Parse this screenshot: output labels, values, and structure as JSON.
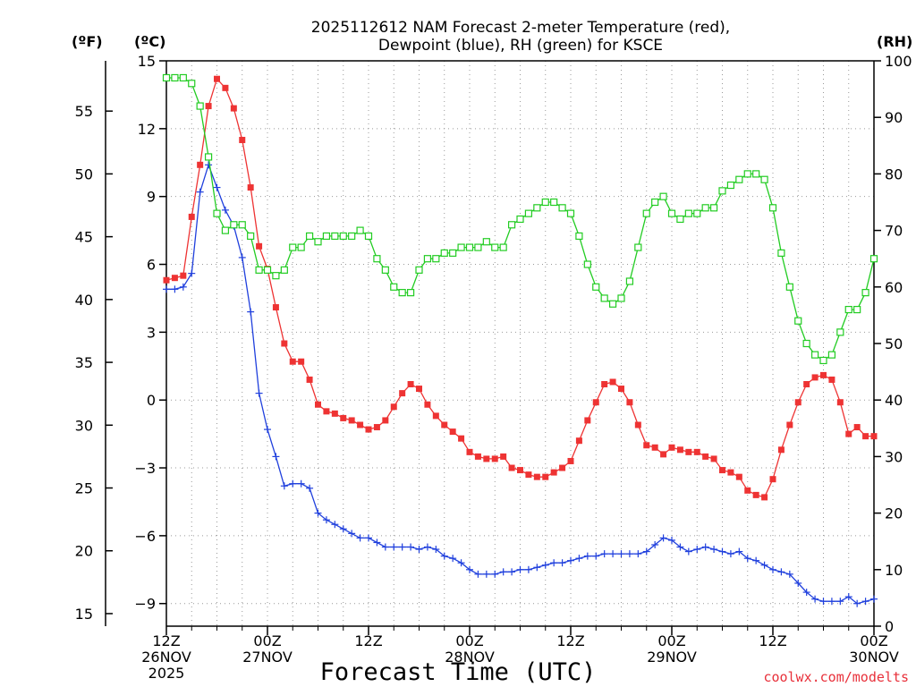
{
  "chart_data": {
    "type": "line",
    "title_line1": "2025112612 NAM Forecast 2-meter Temperature (red),",
    "title_line2": "Dewpoint (blue), RH (green) for KSCE",
    "unit_left_f": "(ºF)",
    "unit_left_c": "(ºC)",
    "unit_right": "(RH)",
    "xlabel": "Forecast Time (UTC)",
    "credit": "coolwx.com/modelts",
    "credit_color": "#e8303a",
    "x_hours_range": [
      0,
      84
    ],
    "y_celsius_range": [
      -10,
      15
    ],
    "y_rh_range": [
      0,
      100
    ],
    "celsius_ticks": [
      15,
      12,
      9,
      6,
      3,
      0,
      -3,
      -6,
      -9
    ],
    "celsius_tick_labels": [
      "15",
      "12",
      "9",
      "6",
      "3",
      "0",
      "−3",
      "−6",
      "−9"
    ],
    "fahrenheit_ticks": [
      55,
      50,
      45,
      40,
      35,
      30,
      25,
      20,
      15
    ],
    "fahrenheit_tick_labels": [
      "55",
      "50",
      "45",
      "40",
      "35",
      "30",
      "25",
      "20",
      "15"
    ],
    "rh_ticks": [
      100,
      90,
      80,
      70,
      60,
      50,
      40,
      30,
      20,
      10,
      0
    ],
    "rh_tick_labels": [
      "100",
      "90",
      "80",
      "70",
      "60",
      "50",
      "40",
      "30",
      "20",
      "10",
      "0"
    ],
    "x_ticks": [
      {
        "hour": 0,
        "line1": "12Z",
        "line2": "26NOV",
        "line3": "2025"
      },
      {
        "hour": 12,
        "line1": "00Z",
        "line2": "27NOV",
        "line3": ""
      },
      {
        "hour": 24,
        "line1": "12Z",
        "line2": "",
        "line3": ""
      },
      {
        "hour": 36,
        "line1": "00Z",
        "line2": "28NOV",
        "line3": ""
      },
      {
        "hour": 48,
        "line1": "12Z",
        "line2": "",
        "line3": ""
      },
      {
        "hour": 60,
        "line1": "00Z",
        "line2": "29NOV",
        "line3": ""
      },
      {
        "hour": 72,
        "line1": "12Z",
        "line2": "",
        "line3": ""
      },
      {
        "hour": 84,
        "line1": "00Z",
        "line2": "30NOV",
        "line3": ""
      }
    ],
    "grid": true,
    "series": [
      {
        "name": "Temperature",
        "color": "#ee3333",
        "marker": "filled-square",
        "axis": "celsius",
        "x": [
          0,
          1,
          2,
          3,
          4,
          5,
          6,
          7,
          8,
          9,
          10,
          11,
          12,
          13,
          14,
          15,
          16,
          17,
          18,
          19,
          20,
          21,
          22,
          23,
          24,
          25,
          26,
          27,
          28,
          29,
          30,
          31,
          32,
          33,
          34,
          35,
          36,
          37,
          38,
          39,
          40,
          41,
          42,
          43,
          44,
          45,
          46,
          47,
          48,
          49,
          50,
          51,
          52,
          53,
          54,
          55,
          56,
          57,
          58,
          59,
          60,
          61,
          62,
          63,
          64,
          65,
          66,
          67,
          68,
          69,
          70,
          71,
          72,
          73,
          74,
          75,
          76,
          77,
          78,
          79,
          80,
          81,
          82,
          83,
          84
        ],
        "values": [
          5.3,
          5.4,
          5.5,
          8.1,
          10.4,
          13.0,
          14.2,
          13.8,
          12.9,
          11.5,
          9.4,
          6.8,
          5.8,
          4.1,
          2.5,
          1.7,
          1.7,
          0.9,
          -0.2,
          -0.5,
          -0.6,
          -0.8,
          -0.9,
          -1.1,
          -1.3,
          -1.2,
          -0.9,
          -0.3,
          0.3,
          0.7,
          0.5,
          -0.2,
          -0.7,
          -1.1,
          -1.4,
          -1.7,
          -2.3,
          -2.5,
          -2.6,
          -2.6,
          -2.5,
          -3.0,
          -3.1,
          -3.3,
          -3.4,
          -3.4,
          -3.2,
          -3.0,
          -2.7,
          -1.8,
          -0.9,
          -0.1,
          0.7,
          0.8,
          0.5,
          -0.1,
          -1.1,
          -2.0,
          -2.1,
          -2.4,
          -2.1,
          -2.2,
          -2.3,
          -2.3,
          -2.5,
          -2.6,
          -3.1,
          -3.2,
          -3.4,
          -4.0,
          -4.2,
          -4.3,
          -3.5,
          -2.2,
          -1.1,
          -0.1,
          0.7,
          1.0,
          1.1,
          0.9,
          -0.1,
          -1.5,
          -1.2,
          -1.6,
          -1.6
        ]
      },
      {
        "name": "Dewpoint",
        "color": "#2040dd",
        "marker": "plus",
        "axis": "celsius",
        "x": [
          0,
          1,
          2,
          3,
          4,
          5,
          6,
          7,
          8,
          9,
          10,
          11,
          12,
          13,
          14,
          15,
          16,
          17,
          18,
          19,
          20,
          21,
          22,
          23,
          24,
          25,
          26,
          27,
          28,
          29,
          30,
          31,
          32,
          33,
          34,
          35,
          36,
          37,
          38,
          39,
          40,
          41,
          42,
          43,
          44,
          45,
          46,
          47,
          48,
          49,
          50,
          51,
          52,
          53,
          54,
          55,
          56,
          57,
          58,
          59,
          60,
          61,
          62,
          63,
          64,
          65,
          66,
          67,
          68,
          69,
          70,
          71,
          72,
          73,
          74,
          75,
          76,
          77,
          78,
          79,
          80,
          81,
          82,
          83,
          84
        ],
        "values": [
          4.9,
          4.9,
          5.0,
          5.6,
          9.2,
          10.4,
          9.4,
          8.4,
          7.7,
          6.3,
          3.9,
          0.3,
          -1.3,
          -2.5,
          -3.8,
          -3.7,
          -3.7,
          -3.9,
          -5.0,
          -5.3,
          -5.5,
          -5.7,
          -5.9,
          -6.1,
          -6.1,
          -6.3,
          -6.5,
          -6.5,
          -6.5,
          -6.5,
          -6.6,
          -6.5,
          -6.6,
          -6.9,
          -7.0,
          -7.2,
          -7.5,
          -7.7,
          -7.7,
          -7.7,
          -7.6,
          -7.6,
          -7.5,
          -7.5,
          -7.4,
          -7.3,
          -7.2,
          -7.2,
          -7.1,
          -7.0,
          -6.9,
          -6.9,
          -6.8,
          -6.8,
          -6.8,
          -6.8,
          -6.8,
          -6.7,
          -6.4,
          -6.1,
          -6.2,
          -6.5,
          -6.7,
          -6.6,
          -6.5,
          -6.6,
          -6.7,
          -6.8,
          -6.7,
          -7.0,
          -7.1,
          -7.3,
          -7.5,
          -7.6,
          -7.7,
          -8.1,
          -8.5,
          -8.8,
          -8.9,
          -8.9,
          -8.9,
          -8.7,
          -9.0,
          -8.9,
          -8.8
        ]
      },
      {
        "name": "RH",
        "color": "#22cc22",
        "marker": "open-square",
        "axis": "rh",
        "x": [
          0,
          1,
          2,
          3,
          4,
          5,
          6,
          7,
          8,
          9,
          10,
          11,
          12,
          13,
          14,
          15,
          16,
          17,
          18,
          19,
          20,
          21,
          22,
          23,
          24,
          25,
          26,
          27,
          28,
          29,
          30,
          31,
          32,
          33,
          34,
          35,
          36,
          37,
          38,
          39,
          40,
          41,
          42,
          43,
          44,
          45,
          46,
          47,
          48,
          49,
          50,
          51,
          52,
          53,
          54,
          55,
          56,
          57,
          58,
          59,
          60,
          61,
          62,
          63,
          64,
          65,
          66,
          67,
          68,
          69,
          70,
          71,
          72,
          73,
          74,
          75,
          76,
          77,
          78,
          79,
          80,
          81,
          82,
          83,
          84
        ],
        "values": [
          97,
          97,
          97,
          96,
          92,
          83,
          73,
          70,
          71,
          71,
          69,
          63,
          63,
          62,
          63,
          67,
          67,
          69,
          68,
          69,
          69,
          69,
          69,
          70,
          69,
          65,
          63,
          60,
          59,
          59,
          63,
          65,
          65,
          66,
          66,
          67,
          67,
          67,
          68,
          67,
          67,
          71,
          72,
          73,
          74,
          75,
          75,
          74,
          73,
          69,
          64,
          60,
          58,
          57,
          58,
          61,
          67,
          73,
          75,
          76,
          73,
          72,
          73,
          73,
          74,
          74,
          77,
          78,
          79,
          80,
          80,
          79,
          74,
          66,
          60,
          54,
          50,
          48,
          47,
          48,
          52,
          56,
          56,
          59,
          65
        ]
      }
    ]
  }
}
